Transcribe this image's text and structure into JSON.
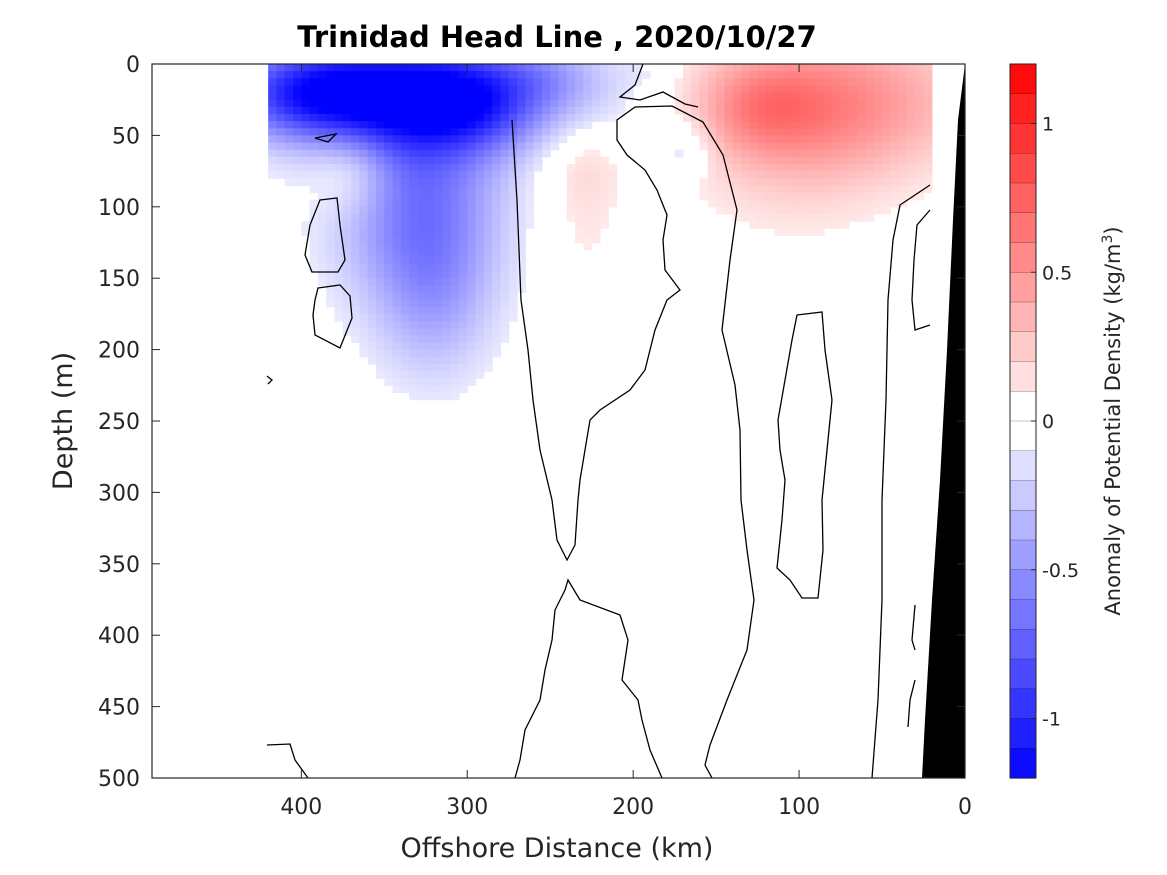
{
  "chart_data": {
    "type": "heatmap",
    "title": "Trinidad Head Line , 2020/10/27",
    "xlabel": "Offshore Distance (km)",
    "ylabel": "Depth (m)",
    "colorbar_label": "Anomaly of Potential Density (kg/m",
    "colorbar_label_sup": "3",
    "colorbar_label_tail": ")",
    "xlim": [
      490,
      0
    ],
    "ylim": [
      500,
      0
    ],
    "x_ticks": [
      400,
      300,
      200,
      100,
      0
    ],
    "y_ticks": [
      0,
      50,
      100,
      150,
      200,
      250,
      300,
      350,
      400,
      450,
      500
    ],
    "colorbar_ticks": [
      {
        "value": 1,
        "label": "1"
      },
      {
        "value": 0.5,
        "label": "0.5"
      },
      {
        "value": 0,
        "label": "0"
      },
      {
        "value": -0.5,
        "label": "-0.5"
      },
      {
        "value": -1,
        "label": "-1"
      }
    ],
    "colorbar_range": [
      -1.2,
      1.2
    ],
    "colorbar_levels": 24,
    "colors": {
      "negative": "#0000ff",
      "positive": "#ff0000",
      "neutral": "#ffffff",
      "bathymetry": "#000000"
    },
    "grid": false,
    "data_x_range": [
      420,
      20
    ],
    "features": [
      {
        "name": "surface-negative-core",
        "x": 315,
        "y": 28,
        "value": -1.0
      },
      {
        "name": "subsurface-negative-lobe",
        "x": 330,
        "y": 90,
        "value": -0.6
      },
      {
        "name": "surface-positive-core",
        "x": 82,
        "y": 26,
        "value": 0.55
      },
      {
        "name": "shallow-positive-patch",
        "x": 230,
        "y": 65,
        "value": 0.15
      },
      {
        "name": "shallow-negative-eddy",
        "x": 170,
        "y": 60,
        "value": -0.25
      }
    ]
  }
}
